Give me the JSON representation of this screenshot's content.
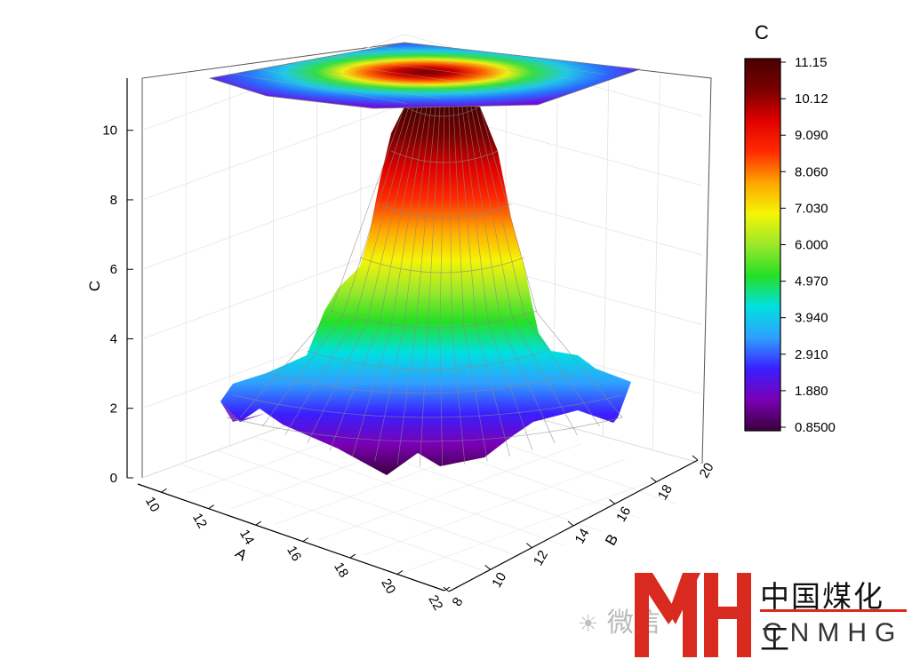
{
  "chart_data": {
    "type": "3d-surface",
    "title": "",
    "x_axis": {
      "label": "A",
      "ticks": [
        "10",
        "12",
        "14",
        "16",
        "18",
        "20",
        "22"
      ],
      "range": [
        9,
        22
      ]
    },
    "y_axis": {
      "label": "B",
      "ticks": [
        "8",
        "10",
        "12",
        "14",
        "16",
        "18",
        "20"
      ],
      "range": [
        8,
        20
      ]
    },
    "z_axis": {
      "label": "C",
      "ticks": [
        "0",
        "2",
        "4",
        "6",
        "8",
        "10"
      ],
      "range": [
        0,
        11.5
      ]
    },
    "colorbar": {
      "title": "C",
      "labels": [
        "11.15",
        "10.12",
        "9.090",
        "8.060",
        "7.030",
        "6.000",
        "4.970",
        "3.940",
        "2.910",
        "1.880",
        "0.8500"
      ],
      "min": 0.85,
      "max": 11.15,
      "colormap": [
        "#3b003b",
        "#7a00b5",
        "#3a1fff",
        "#2fa0ff",
        "#00e0e0",
        "#25e025",
        "#9ce82a",
        "#f5f505",
        "#ffa500",
        "#ff2a00",
        "#e10000",
        "#7a0000",
        "#4a0000"
      ]
    },
    "surface": {
      "peak_value": 11.15,
      "base_value": 0.85,
      "contour_projection_top": true,
      "grid": true
    }
  },
  "watermark": {
    "wechat_label": "微信",
    "logo_letters": "MH",
    "company_cn": "中国煤化工",
    "company_en": "CNMHG"
  }
}
